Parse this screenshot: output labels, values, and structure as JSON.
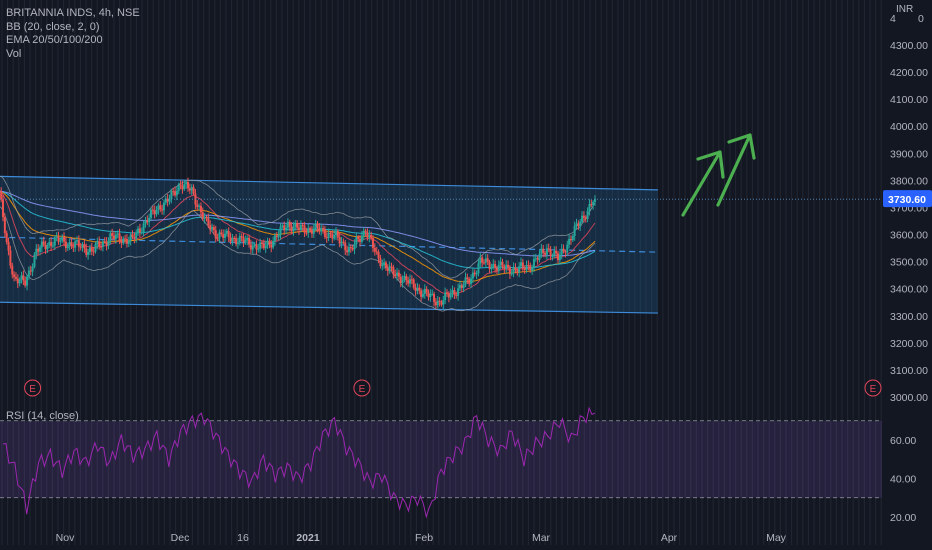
{
  "legend": {
    "title": "BRITANNIA INDS, 4h, NSE",
    "bb": "BB (20, close, 2, 0)",
    "ema": "EMA 20/50/100/200",
    "vol": "Vol"
  },
  "rsi_label": "RSI (14, close)",
  "currency": "INR",
  "colors": {
    "background": "#131722",
    "up_candle": "#26a69a",
    "down_candle": "#ef5350",
    "channel": "#2962ff",
    "channel_fill": "#1e5a8a",
    "rsi_line": "#9c27b0",
    "arrows": "#4caf50",
    "price_badge": "#2962ff",
    "earnings_marker": "#e0455a"
  },
  "chart_data": [
    {
      "type": "candlestick",
      "title": "BRITANNIA INDS, 4h, NSE",
      "y_axis": {
        "ticks": [
          "4300.00",
          "4200.00",
          "4100.00",
          "4000.00",
          "3900.00",
          "3800.00",
          "3700.00",
          "3600.00",
          "3500.00",
          "3400.00",
          "3300.00",
          "3200.00",
          "3100.00",
          "3000.00"
        ],
        "range": [
          2975,
          4350
        ],
        "top_tick_truncated": "4",
        "last_price": "3730.60"
      },
      "x_axis": {
        "ticks": [
          "Nov",
          "Dec",
          "16",
          "2021",
          "Feb",
          "Mar",
          "Apr",
          "May"
        ]
      },
      "close_path": [
        [
          "Oct 26",
          3760
        ],
        [
          "Oct 28",
          3560
        ],
        [
          "Oct 30",
          3440
        ],
        [
          "Nov 2",
          3420
        ],
        [
          "Nov 5",
          3540
        ],
        [
          "Nov 10",
          3580
        ],
        [
          "Nov 16",
          3560
        ],
        [
          "Nov 20",
          3540
        ],
        [
          "Nov 25",
          3590
        ],
        [
          "Dec 1",
          3580
        ],
        [
          "Dec 4",
          3640
        ],
        [
          "Dec 8",
          3700
        ],
        [
          "Dec 11",
          3730
        ],
        [
          "Dec 14",
          3790
        ],
        [
          "Dec 17",
          3760
        ],
        [
          "Dec 21",
          3640
        ],
        [
          "Dec 24",
          3600
        ],
        [
          "Dec 30",
          3580
        ],
        [
          "Jan 5",
          3550
        ],
        [
          "Jan 8",
          3580
        ],
        [
          "Jan 12",
          3640
        ],
        [
          "Jan 15",
          3620
        ],
        [
          "Jan 20",
          3620
        ],
        [
          "Jan 25",
          3590
        ],
        [
          "Jan 29",
          3540
        ],
        [
          "Feb 2",
          3620
        ],
        [
          "Feb 5",
          3520
        ],
        [
          "Feb 9",
          3460
        ],
        [
          "Feb 12",
          3440
        ],
        [
          "Feb 17",
          3390
        ],
        [
          "Feb 22",
          3350
        ],
        [
          "Feb 26",
          3390
        ],
        [
          "Mar 2",
          3430
        ],
        [
          "Mar 5",
          3500
        ],
        [
          "Mar 10",
          3480
        ],
        [
          "Mar 15",
          3470
        ],
        [
          "Mar 19",
          3490
        ],
        [
          "Mar 23",
          3550
        ],
        [
          "Mar 26",
          3510
        ],
        [
          "Mar 30",
          3600
        ],
        [
          "Apr 1",
          3650
        ],
        [
          "Apr 5",
          3730.6
        ]
      ],
      "channel": {
        "upper": [
          [
            "Oct 26",
            3815
          ],
          [
            "Apr 22",
            3765
          ]
        ],
        "lower": [
          [
            "Oct 26",
            3350
          ],
          [
            "Apr 22",
            3310
          ]
        ],
        "midline": [
          [
            "Oct 26",
            3590
          ],
          [
            "Apr 22",
            3535
          ]
        ]
      },
      "events": [
        {
          "type": "earnings",
          "label": "E",
          "date": "Nov 4"
        },
        {
          "type": "earnings",
          "label": "E",
          "date": "Feb 1"
        },
        {
          "type": "earnings",
          "label": "E",
          "date": "May 5"
        }
      ]
    },
    {
      "type": "line",
      "name": "RSI (14, close)",
      "y_axis": {
        "ticks": [
          "60.00",
          "40.00",
          "20.00"
        ],
        "range": [
          15,
          77
        ]
      },
      "bands": [
        70,
        30
      ],
      "values": [
        58,
        45,
        25,
        48,
        52,
        44,
        54,
        48,
        58,
        48,
        60,
        52,
        55,
        62,
        50,
        64,
        70,
        72,
        62,
        52,
        44,
        38,
        50,
        42,
        46,
        40,
        48,
        62,
        70,
        56,
        48,
        38,
        42,
        30,
        26,
        30,
        22,
        44,
        52,
        58,
        72,
        60,
        54,
        64,
        50,
        58,
        62,
        70,
        60,
        72,
        74
      ]
    }
  ]
}
